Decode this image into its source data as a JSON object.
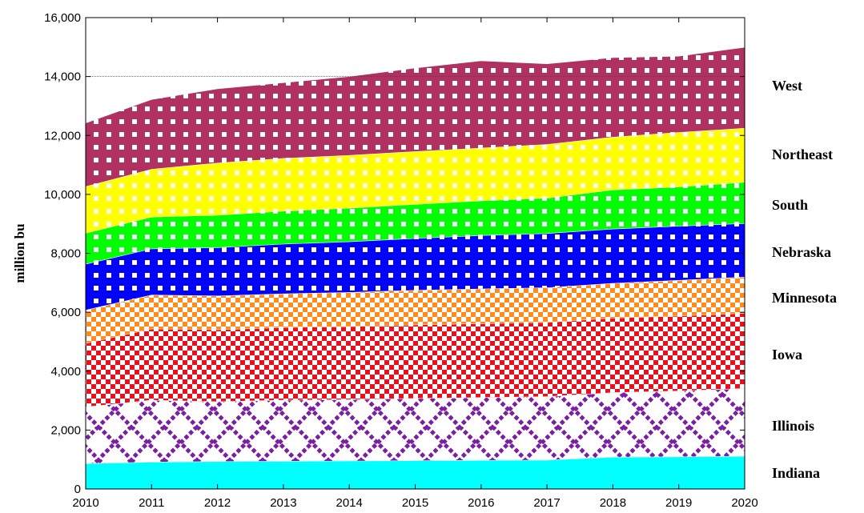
{
  "chart_data": {
    "type": "area",
    "stacked": true,
    "ylabel": "million bu",
    "xlabel": "",
    "ylim": [
      0,
      16000
    ],
    "xlim": [
      2010,
      2020
    ],
    "x": [
      2010,
      2011,
      2012,
      2013,
      2014,
      2015,
      2016,
      2017,
      2018,
      2019,
      2020
    ],
    "y_ticks": [
      "0",
      "2,000",
      "4,000",
      "6,000",
      "8,000",
      "10,000",
      "12,000",
      "14,000",
      "16,000"
    ],
    "x_ticks": [
      "2010",
      "2011",
      "2012",
      "2013",
      "2014",
      "2015",
      "2016",
      "2017",
      "2018",
      "2019",
      "2020"
    ],
    "gridlines": [
      14000
    ],
    "legend_placement": "right, labels aligned to bands",
    "series": [
      {
        "name": "Indiana",
        "color": "#00ffff",
        "pattern": "none",
        "values": [
          870,
          920,
          940,
          950,
          960,
          970,
          980,
          990,
          1090,
          1100,
          1120
        ]
      },
      {
        "name": "Illinois",
        "color": "#7b1fa2",
        "pattern": "lattice",
        "values": [
          1920,
          2100,
          2030,
          2070,
          2080,
          2110,
          2130,
          2150,
          2190,
          2230,
          2300
        ]
      },
      {
        "name": "Iowa",
        "color": "#e8101c",
        "pattern": "checker",
        "values": [
          2160,
          2420,
          2440,
          2470,
          2480,
          2500,
          2510,
          2520,
          2530,
          2550,
          2550
        ]
      },
      {
        "name": "Minnesota",
        "color": "#ff8c1a",
        "pattern": "checker",
        "values": [
          1130,
          1150,
          1150,
          1140,
          1160,
          1170,
          1180,
          1180,
          1180,
          1210,
          1230
        ]
      },
      {
        "name": "Nebraska",
        "color": "#0000ff",
        "pattern": "dots",
        "values": [
          1560,
          1570,
          1640,
          1690,
          1720,
          1760,
          1810,
          1840,
          1840,
          1840,
          1820
        ]
      },
      {
        "name": "South",
        "color": "#00ff00",
        "pattern": "dots",
        "values": [
          1050,
          1080,
          1100,
          1120,
          1140,
          1160,
          1180,
          1200,
          1330,
          1330,
          1400
        ]
      },
      {
        "name": "Northeast",
        "color": "#ffff00",
        "pattern": "dots",
        "values": [
          1580,
          1620,
          1770,
          1790,
          1790,
          1790,
          1790,
          1820,
          1790,
          1850,
          1830
        ]
      },
      {
        "name": "West",
        "color": "#b03060",
        "pattern": "dots",
        "values": [
          2160,
          2370,
          2520,
          2570,
          2680,
          2840,
          2960,
          2740,
          2700,
          2590,
          2750
        ]
      }
    ]
  }
}
